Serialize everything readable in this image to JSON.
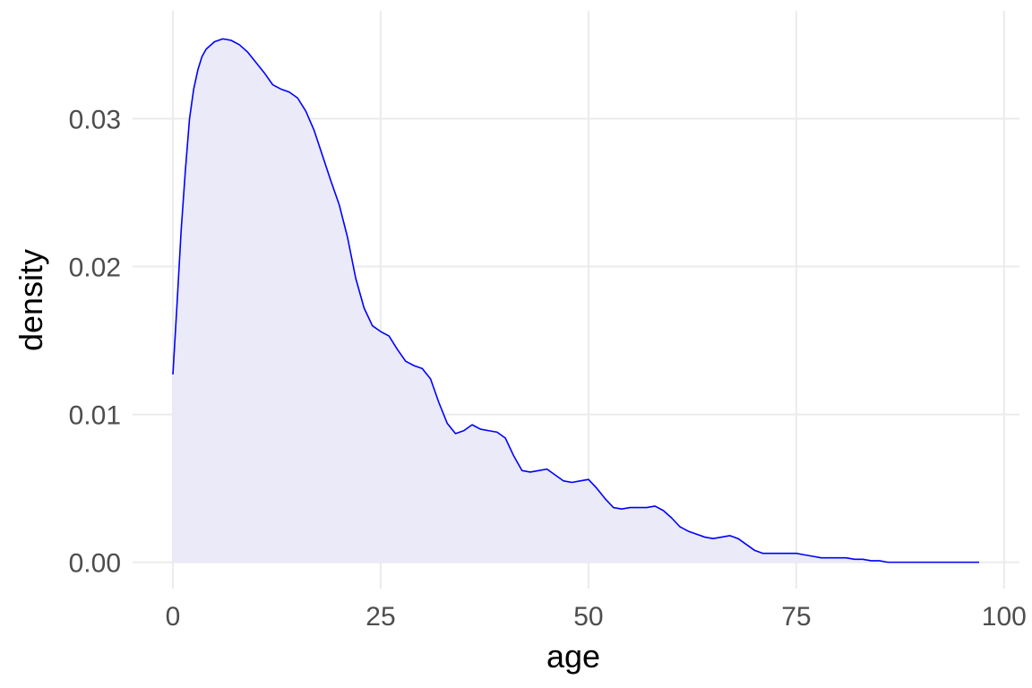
{
  "chart_data": {
    "type": "area",
    "title": "",
    "xlabel": "age",
    "ylabel": "density",
    "xlim": [
      -4.85,
      101.85
    ],
    "ylim": [
      -0.00178,
      0.0373
    ],
    "x_ticks": [
      0,
      25,
      50,
      75,
      100
    ],
    "x_tick_labels": [
      "0",
      "25",
      "50",
      "75",
      "100"
    ],
    "y_ticks": [
      0.0,
      0.01,
      0.02,
      0.03
    ],
    "y_tick_labels": [
      "0.00",
      "0.01",
      "0.02",
      "0.03"
    ],
    "grid": true,
    "legend": "none",
    "line_color": "#0000ff",
    "fill_color": "#eaeaf9",
    "series": [
      {
        "x": [
          0,
          0.5,
          1,
          1.5,
          2,
          2.5,
          3,
          3.5,
          4,
          5,
          6,
          7,
          8,
          9,
          10,
          11,
          12,
          13,
          14,
          15,
          16,
          17,
          18,
          19,
          20,
          21,
          22,
          23,
          24,
          25,
          26,
          27,
          28,
          29,
          30,
          31,
          32,
          33,
          34,
          35,
          36,
          37,
          38,
          39,
          40,
          41,
          42,
          43,
          44,
          45,
          46,
          47,
          48,
          49,
          50,
          51,
          52,
          53,
          54,
          55,
          56,
          57,
          58,
          59,
          60,
          61,
          62,
          63,
          64,
          65,
          66,
          67,
          68,
          69,
          70,
          71,
          72,
          73,
          74,
          75,
          76,
          77,
          78,
          79,
          80,
          81,
          82,
          83,
          84,
          85,
          86,
          87,
          88,
          89,
          90,
          91,
          92,
          93,
          94,
          95,
          96,
          97
        ],
        "y": [
          0.0127,
          0.0175,
          0.0225,
          0.0265,
          0.03,
          0.032,
          0.0333,
          0.0342,
          0.0347,
          0.0352,
          0.0354,
          0.0353,
          0.035,
          0.0345,
          0.0338,
          0.0331,
          0.0323,
          0.032,
          0.0318,
          0.0314,
          0.0305,
          0.0292,
          0.0275,
          0.0258,
          0.0242,
          0.022,
          0.0192,
          0.0172,
          0.016,
          0.0156,
          0.0153,
          0.0144,
          0.0136,
          0.0133,
          0.0131,
          0.0124,
          0.0108,
          0.0094,
          0.0087,
          0.0089,
          0.0093,
          0.009,
          0.0089,
          0.0088,
          0.0084,
          0.0072,
          0.0062,
          0.0061,
          0.0062,
          0.0063,
          0.0059,
          0.0055,
          0.0054,
          0.0055,
          0.0056,
          0.005,
          0.0043,
          0.0037,
          0.0036,
          0.0037,
          0.0037,
          0.0037,
          0.0038,
          0.0035,
          0.003,
          0.0024,
          0.0021,
          0.0019,
          0.0017,
          0.0016,
          0.0017,
          0.0018,
          0.0016,
          0.0012,
          0.0008,
          0.0006,
          0.0006,
          0.0006,
          0.0006,
          0.0006,
          0.0005,
          0.0004,
          0.0003,
          0.0003,
          0.0003,
          0.0003,
          0.0002,
          0.0002,
          0.0001,
          0.0001,
          0.0,
          0.0,
          0.0,
          0.0,
          0.0,
          0.0,
          0.0,
          0.0,
          0.0,
          0.0,
          0.0,
          0.0
        ]
      }
    ]
  }
}
